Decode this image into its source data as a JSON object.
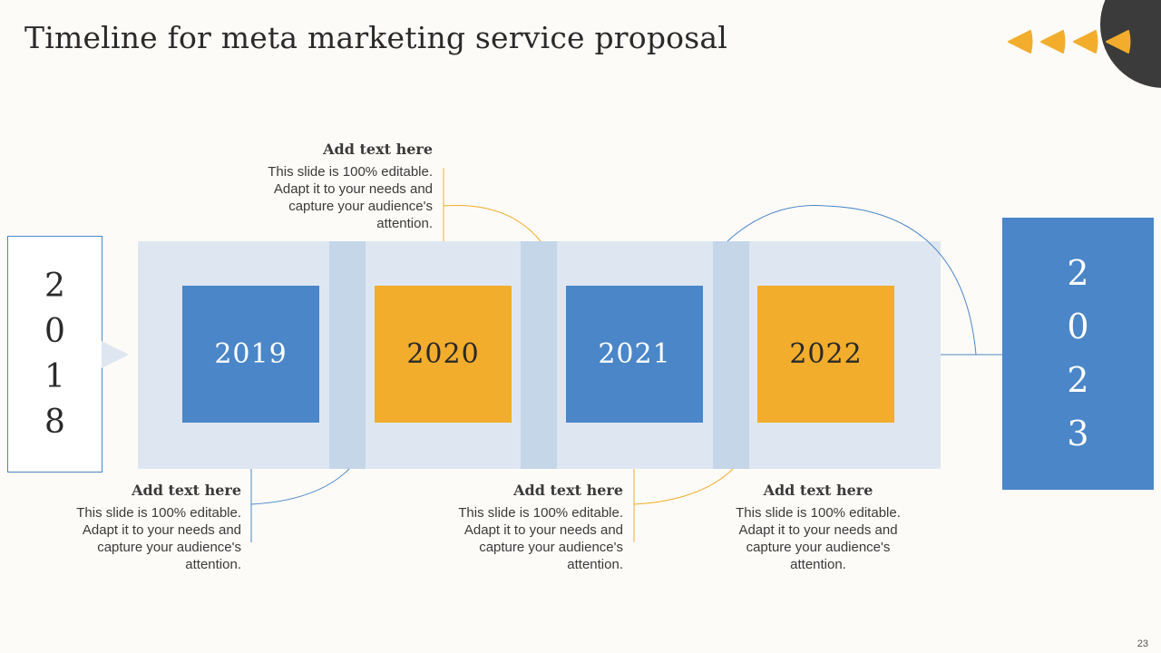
{
  "title": "Timeline for meta marketing service proposal",
  "page_number": "23",
  "colors": {
    "blue": "#4a86c8",
    "orange": "#f2ad2c",
    "band": "#dee7f1",
    "separator": "#c5d6e8",
    "dark_circle": "#3b3b3b"
  },
  "start_year": {
    "digits": [
      "2",
      "0",
      "1",
      "8"
    ]
  },
  "end_year": {
    "digits": [
      "2",
      "0",
      "2",
      "3"
    ]
  },
  "years": [
    {
      "label": "2019",
      "color": "blue"
    },
    {
      "label": "2020",
      "color": "orange"
    },
    {
      "label": "2021",
      "color": "blue"
    },
    {
      "label": "2022",
      "color": "orange"
    }
  ],
  "notes": [
    {
      "heading": "Add text here",
      "body": "This slide is 100% editable. Adapt it to your needs and capture your audience's attention."
    },
    {
      "heading": "Add text here",
      "body": "This slide is 100% editable. Adapt it to your needs and capture your audience's attention."
    },
    {
      "heading": "Add text here",
      "body": "This slide is 100% editable. Adapt it to your needs and capture your audience's attention."
    },
    {
      "heading": "Add text here",
      "body": "This slide is 100% editable. Adapt it to your needs and capture your audience's attention."
    }
  ]
}
